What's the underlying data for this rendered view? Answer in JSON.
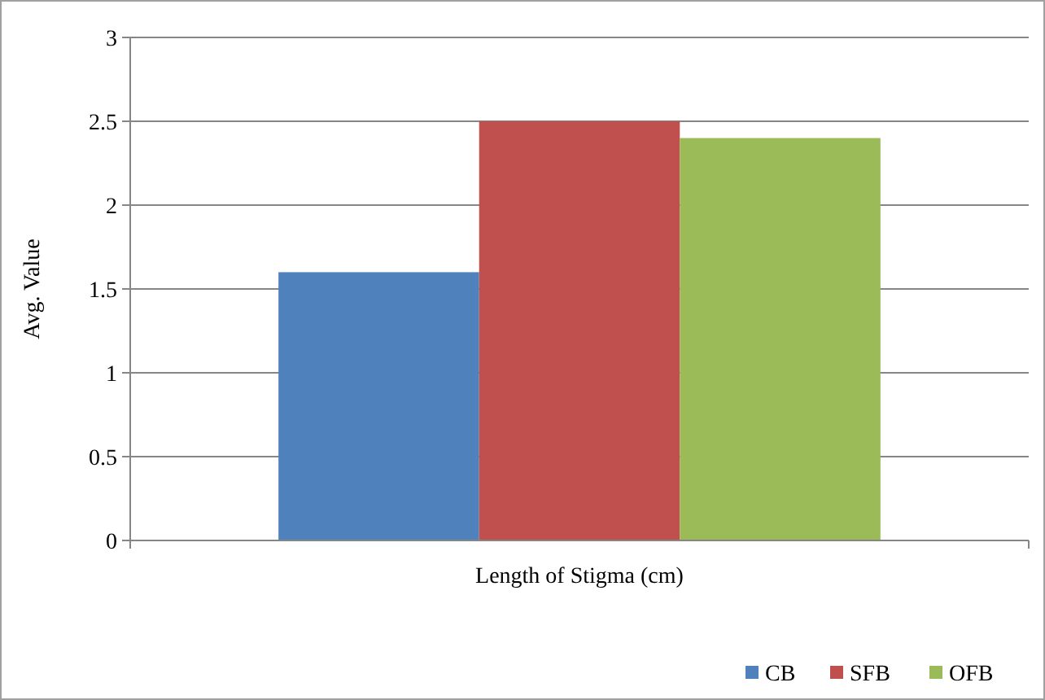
{
  "chart_data": {
    "type": "bar",
    "ylabel": "Avg. Value",
    "categories": [
      "Length of Stigma (cm)"
    ],
    "series": [
      {
        "name": "CB",
        "color": "#4f81bd",
        "values": [
          1.6
        ]
      },
      {
        "name": "SFB",
        "color": "#c0504d",
        "values": [
          2.5
        ]
      },
      {
        "name": "OFB",
        "color": "#9bbb59",
        "values": [
          2.4
        ]
      }
    ],
    "ylim": [
      0,
      3
    ],
    "yticks": [
      0,
      0.5,
      1,
      1.5,
      2,
      2.5,
      3
    ],
    "grid": "y",
    "legend": "bottom right"
  }
}
